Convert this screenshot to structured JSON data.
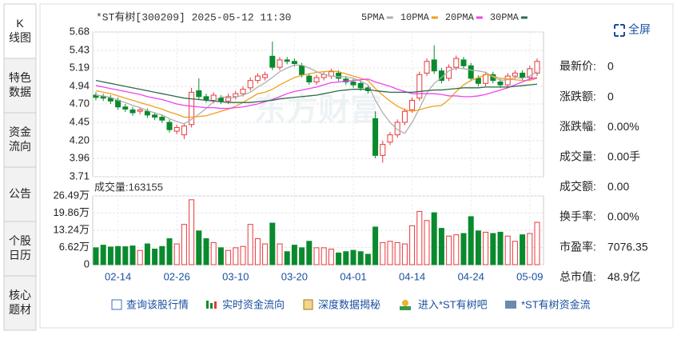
{
  "tabs": [
    "K\n线图",
    "特色\n数据",
    "资金\n流向",
    "公告",
    "个股\n日历",
    "核心\n题材"
  ],
  "fullscreen": "全屏",
  "watermark": "东方财富",
  "info": [
    {
      "label": "最新价:",
      "value": "0"
    },
    {
      "label": "涨跌额:",
      "value": "0"
    },
    {
      "label": "涨跌幅:",
      "value": "0.00%"
    },
    {
      "label": "成交量:",
      "value": "0.00手"
    },
    {
      "label": "成交额:",
      "value": "0.00"
    },
    {
      "label": "换手率:",
      "value": "0.00%"
    },
    {
      "label": "市盈率:",
      "value": "7076.35"
    },
    {
      "label": "总市值:",
      "value": "48.9亿"
    }
  ],
  "links": [
    "查询该股行情",
    "实时资金流向",
    "深度数据揭秘",
    "进入*ST有树吧",
    "*ST有树资金流"
  ],
  "chart_data": [
    {
      "type": "candlestick",
      "title": "*ST有树[300209] 2025-05-12 11:30",
      "categories": [
        null,
        null,
        null,
        "02-14",
        null,
        null,
        null,
        null,
        null,
        null,
        null,
        "02-26",
        null,
        null,
        null,
        null,
        null,
        null,
        null,
        "03-10",
        null,
        null,
        null,
        null,
        null,
        null,
        null,
        "03-20",
        null,
        null,
        null,
        null,
        null,
        null,
        null,
        "04-01",
        null,
        null,
        null,
        null,
        null,
        null,
        null,
        "04-14",
        null,
        null,
        null,
        null,
        null,
        null,
        null,
        "04-24",
        null,
        null,
        null,
        null,
        null,
        null,
        null,
        "05-09",
        null
      ],
      "open": [
        4.82,
        4.8,
        4.78,
        4.75,
        4.66,
        4.62,
        4.6,
        4.6,
        4.55,
        4.52,
        4.45,
        4.33,
        4.28,
        4.42,
        4.88,
        4.8,
        4.75,
        4.78,
        4.74,
        4.8,
        4.84,
        4.92,
        5.02,
        5.06,
        5.35,
        5.2,
        5.3,
        5.28,
        5.22,
        5.08,
        5.0,
        5.06,
        5.08,
        5.12,
        5.04,
        5.0,
        4.98,
        4.92,
        4.5,
        4.0,
        4.18,
        4.28,
        4.45,
        4.62,
        4.78,
        5.12,
        5.3,
        5.15,
        5.05,
        5.2,
        5.3,
        5.22,
        5.05,
        4.98,
        5.1,
        5.0,
        4.96,
        5.08,
        5.12,
        5.06,
        5.12
      ],
      "high": [
        4.86,
        4.84,
        4.82,
        4.79,
        4.7,
        4.66,
        4.66,
        4.64,
        4.59,
        4.56,
        4.49,
        4.42,
        4.44,
        4.92,
        5.05,
        4.84,
        4.86,
        4.82,
        4.84,
        4.88,
        4.94,
        5.06,
        5.12,
        5.14,
        5.55,
        5.34,
        5.34,
        5.32,
        5.26,
        5.12,
        5.1,
        5.14,
        5.18,
        5.16,
        5.08,
        5.04,
        5.02,
        4.96,
        4.6,
        4.2,
        4.32,
        4.49,
        4.64,
        4.79,
        5.14,
        5.32,
        5.5,
        5.19,
        5.24,
        5.36,
        5.34,
        5.26,
        5.09,
        5.14,
        5.14,
        5.04,
        5.12,
        5.16,
        5.16,
        5.22,
        5.32
      ],
      "low": [
        4.75,
        4.74,
        4.7,
        4.62,
        4.59,
        4.54,
        4.56,
        4.51,
        4.48,
        4.44,
        4.31,
        4.29,
        4.22,
        4.38,
        4.76,
        4.72,
        4.71,
        4.7,
        4.7,
        4.76,
        4.8,
        4.88,
        4.98,
        5.02,
        5.16,
        5.16,
        5.24,
        5.21,
        5.06,
        4.96,
        4.96,
        5.02,
        5.04,
        5.01,
        4.96,
        4.92,
        4.88,
        4.84,
        3.96,
        3.9,
        4.14,
        4.24,
        4.41,
        4.58,
        4.74,
        5.08,
        5.11,
        4.98,
        5.01,
        5.16,
        5.18,
        5.01,
        4.94,
        4.94,
        4.98,
        4.92,
        4.92,
        5.04,
        5.02,
        5.02,
        5.08
      ],
      "close": [
        4.79,
        4.78,
        4.74,
        4.66,
        4.63,
        4.58,
        4.62,
        4.55,
        4.52,
        4.48,
        4.35,
        4.38,
        4.4,
        4.86,
        4.8,
        4.76,
        4.82,
        4.74,
        4.8,
        4.84,
        4.9,
        5.02,
        5.08,
        5.1,
        5.2,
        5.3,
        5.28,
        5.25,
        5.1,
        5.0,
        5.06,
        5.1,
        5.14,
        5.05,
        5.0,
        4.96,
        4.92,
        4.88,
        4.0,
        4.15,
        4.28,
        4.45,
        4.6,
        4.75,
        5.1,
        5.28,
        5.15,
        5.02,
        5.2,
        5.32,
        5.22,
        5.05,
        4.98,
        5.1,
        5.02,
        4.96,
        5.08,
        5.12,
        5.06,
        5.18,
        5.28
      ],
      "up_color": "#e8383d",
      "down_color": "#0a8a2e",
      "series": [
        {
          "name": "5PMA",
          "color": "#b0b0b0",
          "values": [
            4.82,
            4.81,
            4.79,
            4.75,
            4.72,
            4.68,
            4.65,
            4.61,
            4.58,
            4.55,
            4.5,
            4.46,
            4.43,
            4.49,
            4.56,
            4.64,
            4.73,
            4.8,
            4.78,
            4.79,
            4.82,
            4.86,
            4.93,
            4.99,
            5.06,
            5.14,
            5.19,
            5.23,
            5.23,
            5.19,
            5.14,
            5.1,
            5.08,
            5.07,
            5.07,
            5.05,
            5.01,
            4.96,
            4.75,
            4.58,
            4.45,
            4.35,
            4.3,
            4.45,
            4.64,
            4.85,
            4.98,
            5.06,
            5.15,
            5.19,
            5.18,
            5.16,
            5.15,
            5.13,
            5.07,
            5.02,
            5.03,
            5.06,
            5.05,
            5.08,
            5.14
          ]
        },
        {
          "name": "10PMA",
          "color": "#f0a020",
          "values": [
            4.88,
            4.86,
            4.84,
            4.81,
            4.78,
            4.75,
            4.72,
            4.69,
            4.66,
            4.63,
            4.59,
            4.56,
            4.52,
            4.52,
            4.53,
            4.54,
            4.57,
            4.6,
            4.63,
            4.67,
            4.72,
            4.78,
            4.84,
            4.86,
            4.9,
            4.96,
            5.01,
            5.06,
            5.09,
            5.11,
            5.13,
            5.14,
            5.15,
            5.14,
            5.11,
            5.08,
            5.05,
            5.02,
            4.91,
            4.82,
            4.74,
            4.67,
            4.62,
            4.6,
            4.62,
            4.65,
            4.67,
            4.68,
            4.76,
            4.87,
            4.96,
            5.02,
            5.06,
            5.1,
            5.08,
            5.05,
            5.04,
            5.03,
            5.02,
            5.02,
            5.05
          ]
        },
        {
          "name": "20PMA",
          "color": "#ee44ee",
          "values": [
            4.95,
            4.93,
            4.91,
            4.89,
            4.87,
            4.85,
            4.83,
            4.8,
            4.78,
            4.76,
            4.73,
            4.7,
            4.68,
            4.67,
            4.66,
            4.65,
            4.65,
            4.64,
            4.64,
            4.65,
            4.66,
            4.68,
            4.7,
            4.73,
            4.76,
            4.8,
            4.84,
            4.87,
            4.89,
            4.91,
            4.93,
            4.96,
            4.99,
            5.0,
            5.01,
            5.02,
            5.03,
            5.04,
            5.0,
            4.97,
            4.94,
            4.9,
            4.87,
            4.84,
            4.84,
            4.84,
            4.84,
            4.83,
            4.81,
            4.81,
            4.8,
            4.8,
            4.81,
            4.83,
            4.86,
            4.89,
            4.92,
            4.96,
            5.0,
            5.04,
            5.06
          ]
        },
        {
          "name": "30PMA",
          "color": "#2f6b4a",
          "values": [
            5.02,
            5.0,
            4.98,
            4.96,
            4.94,
            4.92,
            4.9,
            4.88,
            4.86,
            4.84,
            4.82,
            4.8,
            4.78,
            4.77,
            4.76,
            4.75,
            4.74,
            4.73,
            4.72,
            4.72,
            4.72,
            4.72,
            4.73,
            4.74,
            4.75,
            4.77,
            4.78,
            4.79,
            4.8,
            4.81,
            4.82,
            4.84,
            4.86,
            4.88,
            4.89,
            4.9,
            4.9,
            4.9,
            4.88,
            4.87,
            4.86,
            4.86,
            4.86,
            4.86,
            4.87,
            4.88,
            4.89,
            4.89,
            4.9,
            4.91,
            4.92,
            4.92,
            4.92,
            4.93,
            4.93,
            4.93,
            4.93,
            4.94,
            4.95,
            4.96,
            4.97
          ]
        }
      ],
      "ylim": [
        3.71,
        5.68
      ],
      "yticks": [
        3.71,
        3.96,
        {
          "value": 4.2,
          "label": "4.20"
        },
        4.45,
        {
          "value": 4.7,
          "label": "4.70"
        },
        4.94,
        5.19,
        5.43,
        5.68
      ],
      "grid": true
    },
    {
      "type": "bar",
      "title": "成交量:163155",
      "values": [
        6.5,
        7.5,
        6.8,
        7,
        6.9,
        7.2,
        5.5,
        8,
        6,
        7,
        10,
        8,
        15.5,
        25,
        13,
        10,
        8.5,
        6.5,
        5.5,
        6.5,
        7,
        15.5,
        10,
        8,
        16,
        8,
        5,
        7.5,
        6.5,
        9,
        6.5,
        6.5,
        6,
        4.5,
        5,
        5.5,
        5,
        4,
        14.5,
        8.5,
        9,
        8.5,
        8,
        15,
        20.5,
        17,
        20,
        14,
        11,
        11.5,
        12,
        18.5,
        13,
        12.5,
        12,
        12.5,
        11,
        9,
        11.5,
        12,
        16.3
      ],
      "ylim": [
        0,
        26.49
      ],
      "yticks": [
        0,
        {
          "value": 6.62,
          "label": "6.62万"
        },
        {
          "value": 13.24,
          "label": "13.24万"
        },
        {
          "value": 19.86,
          "label": "19.86万"
        },
        {
          "value": 26.49,
          "label": "26.49万"
        }
      ],
      "grid": true
    }
  ]
}
